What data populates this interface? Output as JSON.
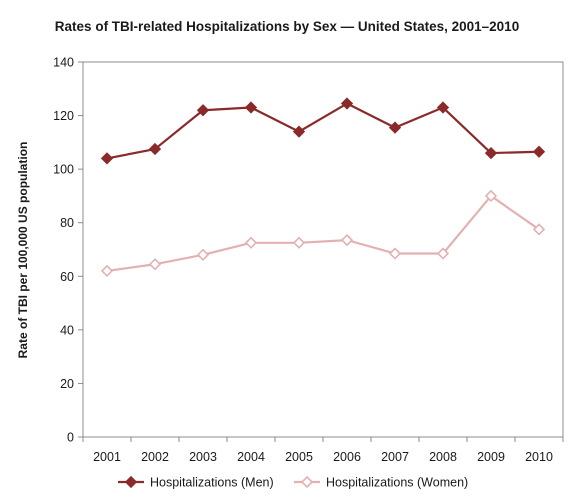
{
  "chart_data": {
    "type": "line",
    "title": "Rates of TBI-related Hospitalizations by Sex — United States, 2001–2010",
    "xlabel": "",
    "ylabel": "Rate of TBI per 100,000 US population",
    "ylim": [
      0,
      140
    ],
    "yticks": [
      0,
      20,
      40,
      60,
      80,
      100,
      120,
      140
    ],
    "grid": false,
    "legend_position": "bottom",
    "categories": [
      "2001",
      "2002",
      "2003",
      "2004",
      "2005",
      "2006",
      "2007",
      "2008",
      "2009",
      "2010"
    ],
    "series": [
      {
        "name": "Hospitalizations (Men)",
        "color": "#8B2A2A",
        "marker": "diamond-filled",
        "values": [
          104,
          107.5,
          122,
          123,
          114,
          124.5,
          115.5,
          123,
          106,
          106.5
        ]
      },
      {
        "name": "Hospitalizations (Women)",
        "color": "#E3B1B1",
        "marker": "diamond-open",
        "values": [
          62,
          64.5,
          68,
          72.5,
          72.5,
          73.5,
          68.5,
          68.5,
          90,
          77.5
        ]
      }
    ]
  }
}
